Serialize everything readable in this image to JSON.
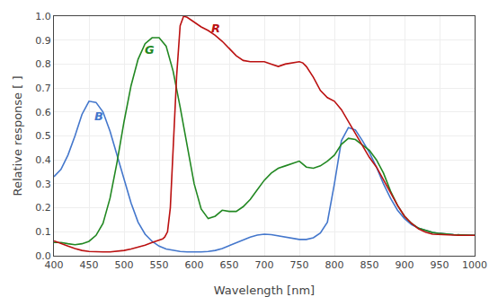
{
  "chart_data": {
    "type": "line",
    "xlabel": "Wavelength [nm]",
    "ylabel": "Relative response [ ]",
    "xlim": [
      400,
      1000
    ],
    "ylim": [
      0.0,
      1.0
    ],
    "xticks": [
      400,
      450,
      500,
      550,
      600,
      650,
      700,
      750,
      800,
      850,
      900,
      950,
      1000
    ],
    "yticks": [
      {
        "value": 0.0,
        "label": "0.0"
      },
      0.1,
      0.2,
      0.3,
      0.4,
      0.5,
      0.6,
      0.7,
      0.8,
      0.9,
      {
        "value": 1.0,
        "label": "1.0"
      }
    ],
    "grid": true,
    "series": [
      {
        "name": "B",
        "color": "#4477cc",
        "x": [
          400,
          410,
          420,
          430,
          440,
          450,
          460,
          470,
          480,
          490,
          500,
          510,
          520,
          530,
          540,
          550,
          560,
          570,
          580,
          590,
          600,
          610,
          620,
          630,
          640,
          650,
          660,
          670,
          680,
          690,
          700,
          710,
          720,
          730,
          740,
          750,
          760,
          770,
          780,
          790,
          800,
          810,
          820,
          830,
          840,
          850,
          860,
          870,
          880,
          890,
          900,
          910,
          920,
          930,
          940,
          950,
          960,
          970,
          980,
          990,
          1000
        ],
        "values": [
          0.33,
          0.36,
          0.42,
          0.5,
          0.59,
          0.645,
          0.64,
          0.6,
          0.52,
          0.42,
          0.32,
          0.22,
          0.14,
          0.09,
          0.06,
          0.04,
          0.028,
          0.022,
          0.018,
          0.016,
          0.015,
          0.016,
          0.018,
          0.022,
          0.03,
          0.042,
          0.055,
          0.068,
          0.078,
          0.086,
          0.09,
          0.088,
          0.083,
          0.078,
          0.073,
          0.068,
          0.068,
          0.075,
          0.095,
          0.14,
          0.3,
          0.48,
          0.535,
          0.525,
          0.48,
          0.43,
          0.37,
          0.3,
          0.24,
          0.19,
          0.155,
          0.13,
          0.115,
          0.105,
          0.097,
          0.093,
          0.09,
          0.088,
          0.087,
          0.086,
          0.085
        ]
      },
      {
        "name": "G",
        "color": "#228822",
        "x": [
          400,
          410,
          420,
          430,
          440,
          450,
          460,
          470,
          480,
          490,
          500,
          510,
          520,
          530,
          540,
          550,
          560,
          570,
          580,
          590,
          600,
          610,
          620,
          630,
          640,
          650,
          660,
          670,
          680,
          690,
          700,
          710,
          720,
          730,
          740,
          750,
          760,
          770,
          780,
          790,
          800,
          810,
          820,
          830,
          840,
          850,
          860,
          870,
          880,
          890,
          900,
          910,
          920,
          930,
          940,
          950,
          960,
          970,
          980,
          990,
          1000
        ],
        "values": [
          0.055,
          0.055,
          0.05,
          0.046,
          0.05,
          0.06,
          0.085,
          0.135,
          0.24,
          0.39,
          0.56,
          0.71,
          0.82,
          0.885,
          0.91,
          0.91,
          0.875,
          0.77,
          0.62,
          0.455,
          0.3,
          0.195,
          0.155,
          0.165,
          0.19,
          0.185,
          0.185,
          0.205,
          0.235,
          0.275,
          0.315,
          0.345,
          0.365,
          0.375,
          0.385,
          0.395,
          0.37,
          0.365,
          0.375,
          0.395,
          0.42,
          0.465,
          0.49,
          0.485,
          0.462,
          0.44,
          0.4,
          0.345,
          0.27,
          0.21,
          0.165,
          0.135,
          0.115,
          0.105,
          0.097,
          0.093,
          0.09,
          0.088,
          0.087,
          0.086,
          0.085
        ]
      },
      {
        "name": "R",
        "color": "#bb1111",
        "x": [
          400,
          410,
          420,
          430,
          440,
          450,
          460,
          470,
          480,
          490,
          500,
          510,
          520,
          530,
          540,
          550,
          555,
          558,
          562,
          566,
          570,
          575,
          580,
          585,
          590,
          595,
          600,
          610,
          620,
          630,
          640,
          650,
          660,
          670,
          680,
          690,
          700,
          710,
          720,
          730,
          740,
          750,
          755,
          760,
          770,
          780,
          790,
          800,
          810,
          820,
          830,
          840,
          850,
          860,
          870,
          880,
          890,
          900,
          910,
          920,
          930,
          940,
          950,
          960,
          970,
          980,
          990,
          1000
        ],
        "values": [
          0.062,
          0.05,
          0.04,
          0.03,
          0.022,
          0.018,
          0.016,
          0.016,
          0.016,
          0.018,
          0.022,
          0.028,
          0.036,
          0.044,
          0.055,
          0.065,
          0.07,
          0.078,
          0.1,
          0.2,
          0.45,
          0.75,
          0.96,
          1.0,
          0.995,
          0.985,
          0.975,
          0.955,
          0.94,
          0.92,
          0.895,
          0.865,
          0.835,
          0.815,
          0.81,
          0.81,
          0.81,
          0.8,
          0.79,
          0.8,
          0.805,
          0.81,
          0.805,
          0.79,
          0.745,
          0.69,
          0.66,
          0.645,
          0.61,
          0.56,
          0.505,
          0.455,
          0.41,
          0.37,
          0.315,
          0.26,
          0.21,
          0.165,
          0.135,
          0.112,
          0.098,
          0.09,
          0.088,
          0.087,
          0.086,
          0.085,
          0.085,
          0.085
        ]
      }
    ],
    "annotations": [
      {
        "text": "B",
        "x": 455,
        "y": 0.545,
        "color": "#4477cc"
      },
      {
        "text": "G",
        "x": 527,
        "y": 0.825,
        "color": "#228822"
      },
      {
        "text": "R",
        "x": 622,
        "y": 0.915,
        "color": "#bb1111"
      }
    ]
  }
}
